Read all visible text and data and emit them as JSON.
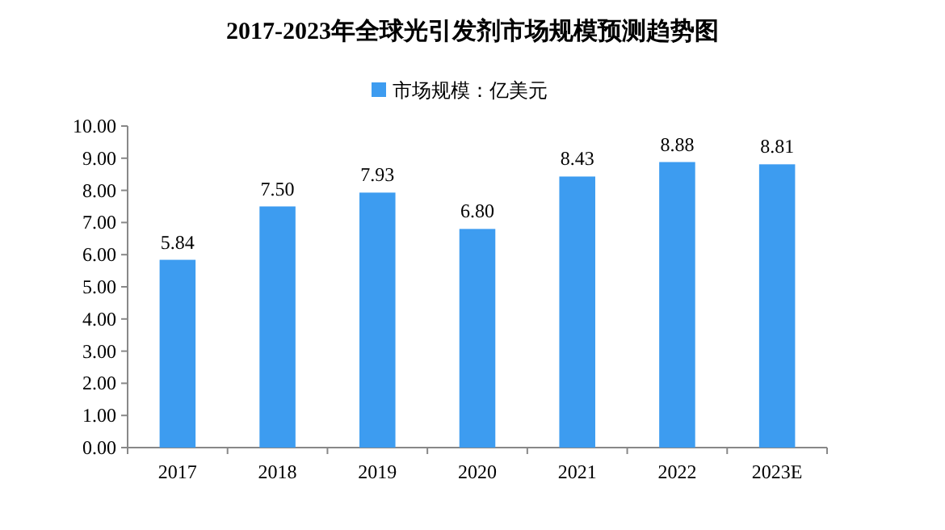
{
  "chart_data": {
    "type": "bar",
    "title": "2017-2023年全球光引发剂市场规模预测趋势图",
    "categories": [
      "2017",
      "2018",
      "2019",
      "2020",
      "2021",
      "2022",
      "2023E"
    ],
    "series": [
      {
        "name": "市场规模：亿美元",
        "color": "#3d9cf0",
        "values": [
          5.84,
          7.5,
          7.93,
          6.8,
          8.43,
          8.88,
          8.81
        ],
        "value_labels": [
          "5.84",
          "7.50",
          "7.93",
          "6.80",
          "8.43",
          "8.88",
          "8.81"
        ]
      }
    ],
    "ylim": [
      0,
      10
    ],
    "yticks": [
      {
        "value": 0,
        "label": "0.00"
      },
      {
        "value": 1,
        "label": "1.00"
      },
      {
        "value": 2,
        "label": "2.00"
      },
      {
        "value": 3,
        "label": "3.00"
      },
      {
        "value": 4,
        "label": "4.00"
      },
      {
        "value": 5,
        "label": "5.00"
      },
      {
        "value": 6,
        "label": "6.00"
      },
      {
        "value": 7,
        "label": "7.00"
      },
      {
        "value": 8,
        "label": "8.00"
      },
      {
        "value": 9,
        "label": "9.00"
      },
      {
        "value": 10,
        "label": "10.00"
      }
    ],
    "legend": "top",
    "grid": false
  }
}
